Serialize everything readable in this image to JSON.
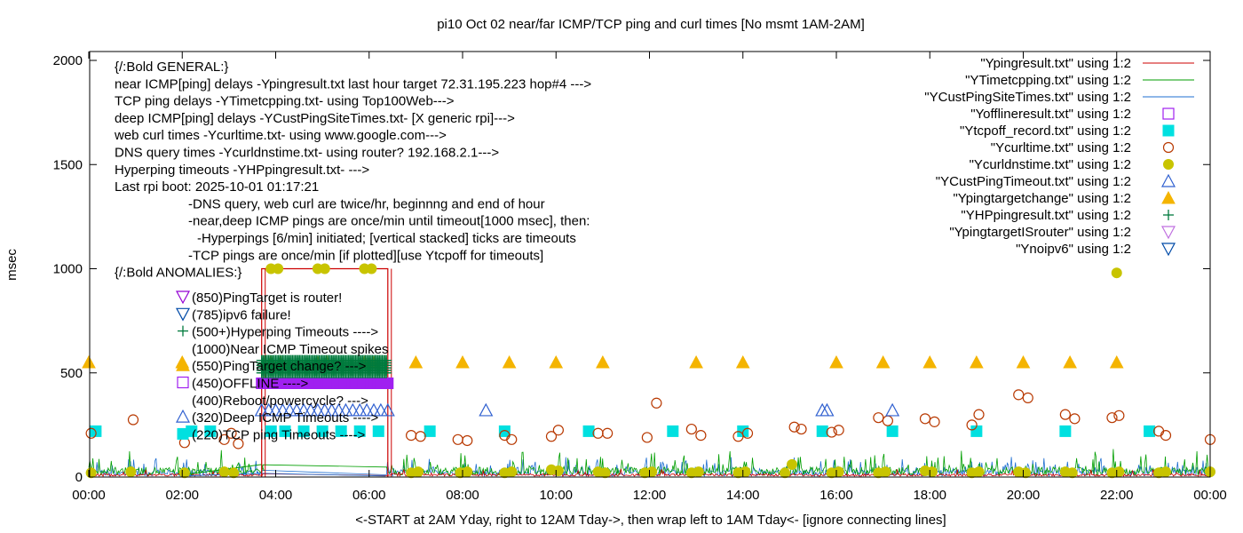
{
  "chart_data": {
    "type": "scatter",
    "title": "pi10 Oct 02  near/far ICMP/TCP ping and curl times [No msmt 1AM-2AM]",
    "xlabel": "<-START at 2AM Yday, right to 12AM Tday->, then wrap left to 1AM Tday<- [ignore connecting lines]",
    "ylabel": "msec",
    "xlim": [
      0,
      24
    ],
    "ylim": [
      0,
      2050
    ],
    "x_ticks": [
      {
        "v": 0,
        "label": "00:00"
      },
      {
        "v": 2,
        "label": "02:00"
      },
      {
        "v": 4,
        "label": "04:00"
      },
      {
        "v": 6,
        "label": "06:00"
      },
      {
        "v": 8,
        "label": "08:00"
      },
      {
        "v": 10,
        "label": "10:00"
      },
      {
        "v": 12,
        "label": "12:00"
      },
      {
        "v": 14,
        "label": "14:00"
      },
      {
        "v": 16,
        "label": "16:00"
      },
      {
        "v": 18,
        "label": "18:00"
      },
      {
        "v": 20,
        "label": "20:00"
      },
      {
        "v": 22,
        "label": "22:00"
      },
      {
        "v": 24,
        "label": "00:00"
      }
    ],
    "y_ticks": [
      {
        "v": 0,
        "label": "0"
      },
      {
        "v": 500,
        "label": "500"
      },
      {
        "v": 1000,
        "label": "1000"
      },
      {
        "v": 1500,
        "label": "1500"
      },
      {
        "v": 2000,
        "label": "2000"
      }
    ],
    "grid": false,
    "legend_placement": "top-right",
    "annotations": [
      "{/:Bold GENERAL:}",
      "near ICMP[ping] delays -Ypingresult.txt last hour target 72.31.195.223 hop#4 --->",
      "TCP ping delays -YTimetcpping.txt- using Top100Web--->",
      "deep ICMP[ping] delays -YCustPingSiteTimes.txt- [X generic rpi]--->",
      "web curl times -Ycurltime.txt- using www.google.com--->",
      "DNS query times -Ycurldnstime.txt- using router? 192.168.2.1--->",
      "Hyperping timeouts -YHPpingresult.txt- --->",
      "Last rpi boot: 2025-10-01 01:17:21",
      "-DNS query, web curl are twice/hr, beginnng and end of hour",
      "-near,deep ICMP pings are once/min until timeout[1000 msec], then:",
      "-Hyperpings [6/min] initiated; [vertical stacked] ticks are timeouts",
      "-TCP pings are once/min [if plotted][use Ytcpoff for timeouts]",
      "{/:Bold ANOMALIES:}"
    ],
    "anomaly_items": [
      {
        "text": "(850)PingTarget is router!",
        "marker": "tri-down",
        "color": "#9400d3"
      },
      {
        "text": "(785)ipv6 failure!",
        "marker": "tri-down",
        "color": "#004aa8"
      },
      {
        "text": "(500+)Hyperping Timeouts ---->",
        "marker": "plus",
        "color": "#007a3d"
      },
      {
        "text": "(1000)Near ICMP Timeout spikes",
        "marker": "",
        "color": "#000000"
      },
      {
        "text": "(550)PingTarget change? --->",
        "marker": "tri-up-filled",
        "color": "#f4b400"
      },
      {
        "text": "(450)OFFLINE ---->",
        "marker": "square",
        "color": "#a020f0"
      },
      {
        "text": "(400)Reboot/powercycle? --->",
        "marker": "",
        "color": "#000000"
      },
      {
        "text": "(320)Deep ICMP Timeouts ---->",
        "marker": "tri-up",
        "color": "#3060d0"
      },
      {
        "text": "(220)TCP ping Timeouts ---->",
        "marker": "square-filled",
        "color": "#00e0e0"
      }
    ],
    "series": [
      {
        "name": "\"Ypingresult.txt\" using 1:2",
        "marker": "line",
        "color": "#cc0000"
      },
      {
        "name": "\"YTimetcpping.txt\" using 1:2",
        "marker": "line",
        "color": "#009e00"
      },
      {
        "name": "\"YCustPingSiteTimes.txt\" using 1:2",
        "marker": "line",
        "color": "#1f6fd1"
      },
      {
        "name": "\"Yofflineresult.txt\" using 1:2",
        "marker": "square",
        "color": "#a020f0",
        "x_start": 3.7,
        "x_end": 6.4,
        "y": 450
      },
      {
        "name": "\"Ytcpoff_record.txt\" using 1:2",
        "marker": "square-filled",
        "color": "#00e0e0",
        "y": 220,
        "x": [
          0.15,
          2.2,
          2.6,
          3.9,
          4.2,
          4.6,
          5.0,
          5.4,
          5.8,
          6.2,
          7.3,
          8.9,
          10.7,
          12.5,
          14.0,
          15.7,
          17.2,
          19.0,
          20.9,
          22.7
        ]
      },
      {
        "name": "\"Ycurltime.txt\" using 1:2",
        "marker": "circle",
        "color": "#b83800",
        "x": [
          0.05,
          0.95,
          2.05,
          2.9,
          3.05,
          3.2,
          6.9,
          7.1,
          7.9,
          8.1,
          8.9,
          9.05,
          9.9,
          10.05,
          10.9,
          11.1,
          11.95,
          12.15,
          12.9,
          13.1,
          13.9,
          14.1,
          15.1,
          15.25,
          15.9,
          16.05,
          16.9,
          17.1,
          17.9,
          18.1,
          18.9,
          19.05,
          19.9,
          20.1,
          20.9,
          21.1,
          21.9,
          22.05,
          22.9,
          23.05,
          24.0
        ],
        "y": [
          210,
          275,
          165,
          180,
          210,
          160,
          200,
          195,
          180,
          175,
          200,
          180,
          195,
          225,
          210,
          210,
          190,
          355,
          230,
          200,
          195,
          210,
          240,
          230,
          215,
          225,
          285,
          270,
          280,
          265,
          250,
          300,
          395,
          380,
          300,
          280,
          285,
          295,
          220,
          200,
          180
        ]
      },
      {
        "name": "\"Ycurldnstime.txt\" using 1:2",
        "marker": "circle-filled",
        "color": "#c8c400",
        "x": [
          0.05,
          0.9,
          2.05,
          2.9,
          3.1,
          3.9,
          4.05,
          4.9,
          5.05,
          5.9,
          6.05,
          6.9,
          7.05,
          7.95,
          8.1,
          8.9,
          9.05,
          9.9,
          10.05,
          10.9,
          11.05,
          11.9,
          12.05,
          12.9,
          13.05,
          13.9,
          14.05,
          14.9,
          15.05,
          15.9,
          16.05,
          16.9,
          17.05,
          17.9,
          18.05,
          18.9,
          19.05,
          19.9,
          20.05,
          20.9,
          21.05,
          21.9,
          22.0,
          22.05,
          22.9,
          23.05,
          24.0
        ],
        "y": [
          20,
          25,
          20,
          25,
          20,
          1000,
          1000,
          1000,
          1000,
          1000,
          1000,
          20,
          25,
          20,
          25,
          20,
          25,
          35,
          30,
          25,
          20,
          20,
          25,
          20,
          25,
          20,
          25,
          20,
          60,
          20,
          25,
          20,
          25,
          30,
          25,
          20,
          25,
          25,
          20,
          25,
          20,
          20,
          980,
          25,
          20,
          25,
          25
        ]
      },
      {
        "name": "\"YCustPingTimeout.txt\" using 1:2",
        "marker": "tri-up",
        "color": "#3060d0",
        "y": 320,
        "x": [
          3.7,
          3.85,
          4.0,
          4.15,
          4.3,
          4.45,
          4.6,
          4.75,
          4.9,
          5.05,
          5.2,
          5.35,
          5.5,
          5.65,
          5.8,
          5.95,
          6.1,
          6.25,
          6.4,
          8.5,
          15.7,
          15.8,
          17.2
        ]
      },
      {
        "name": "\"Ypingtargetchange\" using 1:2",
        "marker": "tri-up-filled",
        "color": "#f4b400",
        "y": 550,
        "x": [
          0,
          2.0,
          3.9,
          4.1,
          4.9,
          5.1,
          5.9,
          6.1,
          7.0,
          8.0,
          9.0,
          10.0,
          11.0,
          13.0,
          14.0,
          16.0,
          17.0,
          18.0,
          19.0,
          20.0,
          21.0,
          22.0
        ]
      },
      {
        "name": "\"YHPpingresult.txt\" using 1:2",
        "marker": "plus",
        "color": "#007a3d",
        "x_start": 3.7,
        "x_end": 6.4,
        "y_min": 500,
        "y_max": 560
      },
      {
        "name": "\"YpingtargetISrouter\" using 1:2",
        "marker": "tri-down",
        "color": "#c070e0"
      },
      {
        "name": "\"Ynoipv6\" using 1:2",
        "marker": "tri-down",
        "color": "#004aa8"
      }
    ],
    "timeout_box": {
      "x_start": 3.7,
      "x_end": 6.4,
      "y": 1000
    }
  }
}
